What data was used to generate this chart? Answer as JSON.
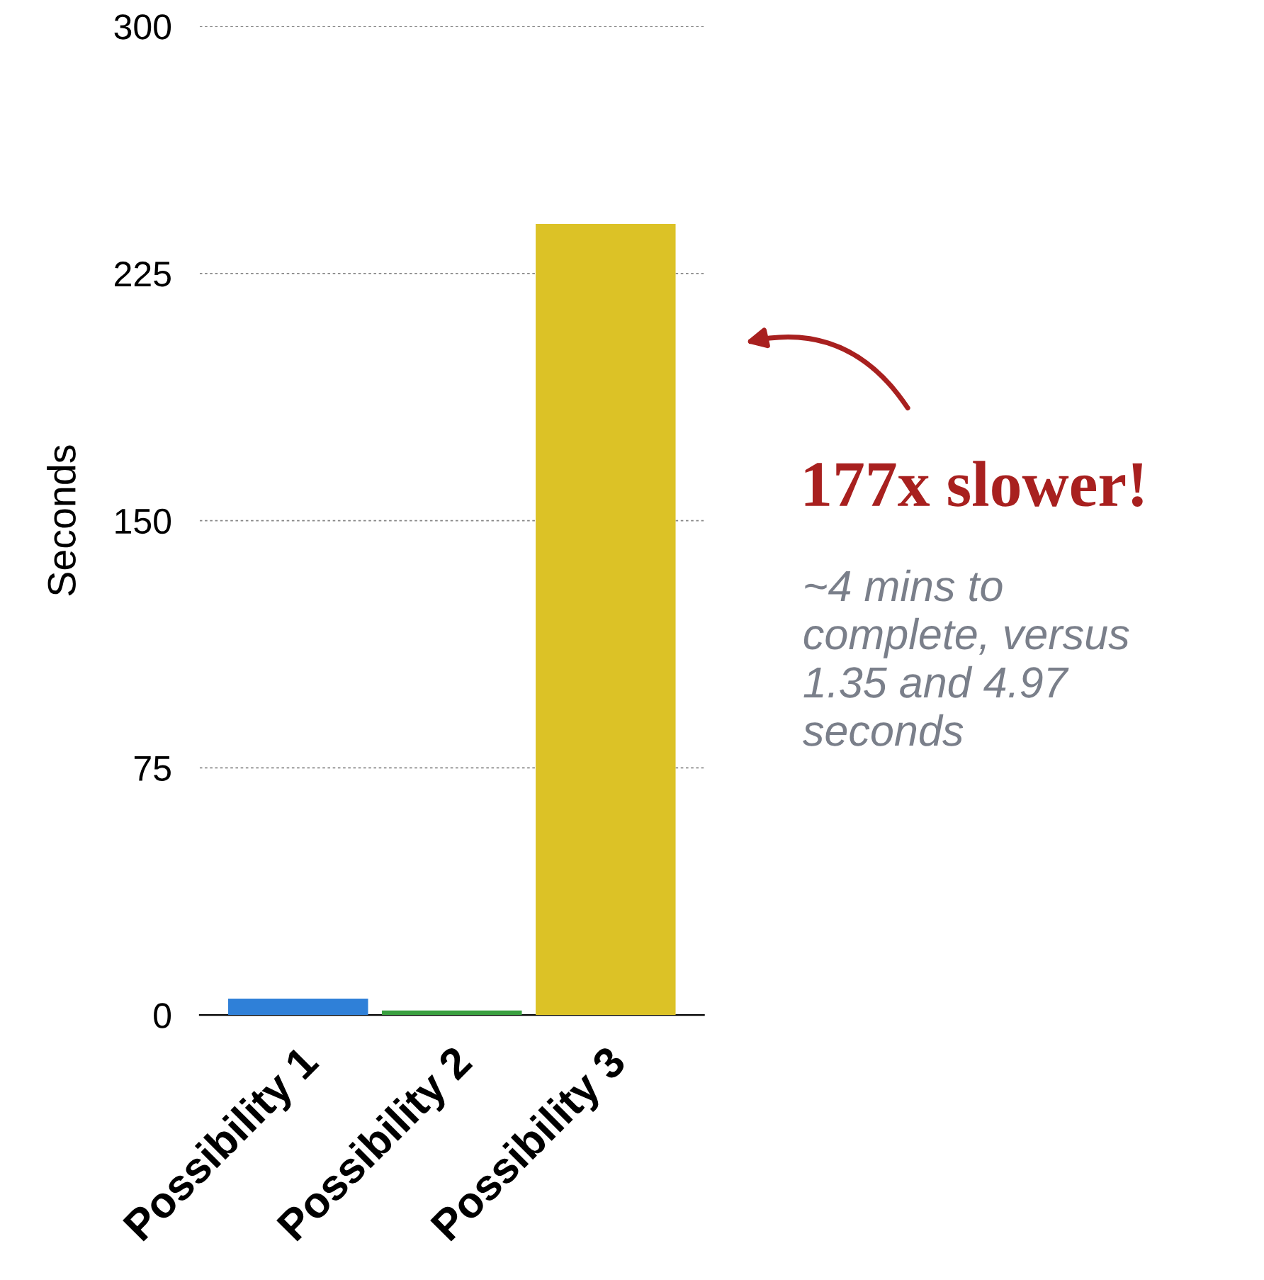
{
  "chart_data": {
    "type": "bar",
    "ylabel": "Seconds",
    "categories": [
      "Possibility 1",
      "Possibility 2",
      "Possibility 3"
    ],
    "values": [
      5,
      1.4,
      240
    ],
    "colors": [
      "#2f80d8",
      "#3aa040",
      "#dcc226"
    ],
    "ylim": [
      0,
      300
    ],
    "yticks": [
      0,
      75,
      150,
      225,
      300
    ],
    "grid": "y",
    "annotations": [
      "177x slower!",
      "~4 mins to\ncomplete, versus\n1.35 and 4.97\nseconds"
    ]
  }
}
